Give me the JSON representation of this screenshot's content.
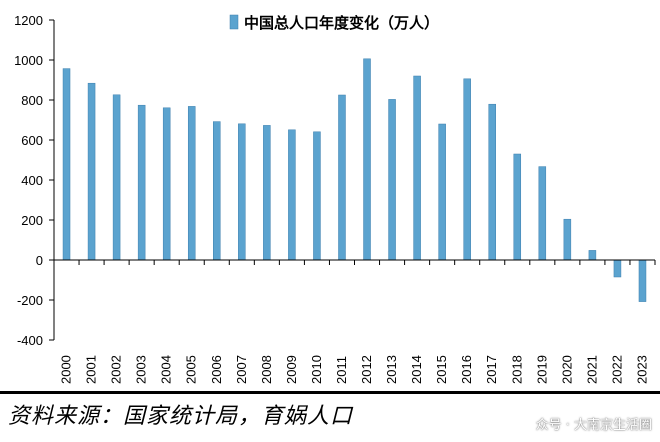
{
  "chart_data": {
    "type": "bar",
    "title": "",
    "xlabel": "",
    "ylabel": "",
    "ylim": [
      -400,
      1200
    ],
    "yticks": [
      -400,
      -200,
      0,
      200,
      400,
      600,
      800,
      1000,
      1200
    ],
    "grid": false,
    "legend": {
      "position": "top-center",
      "series_name": "中国总人口年度变化（万人）"
    },
    "categories": [
      "2000",
      "2001",
      "2002",
      "2003",
      "2004",
      "2005",
      "2006",
      "2007",
      "2008",
      "2009",
      "2010",
      "2011",
      "2012",
      "2013",
      "2014",
      "2015",
      "2016",
      "2017",
      "2018",
      "2019",
      "2020",
      "2021",
      "2022",
      "2023"
    ],
    "series": [
      {
        "name": "中国总人口年度变化（万人）",
        "values": [
          957,
          884,
          826,
          774,
          761,
          768,
          692,
          681,
          673,
          651,
          641,
          825,
          1006,
          803,
          920,
          680,
          906,
          779,
          530,
          467,
          204,
          48,
          -85,
          -208
        ],
        "color": "#5ba3cf"
      }
    ]
  },
  "source": "资料来源：国家统计局，育娲人口",
  "watermark": "众号 · 大南京生活圈"
}
